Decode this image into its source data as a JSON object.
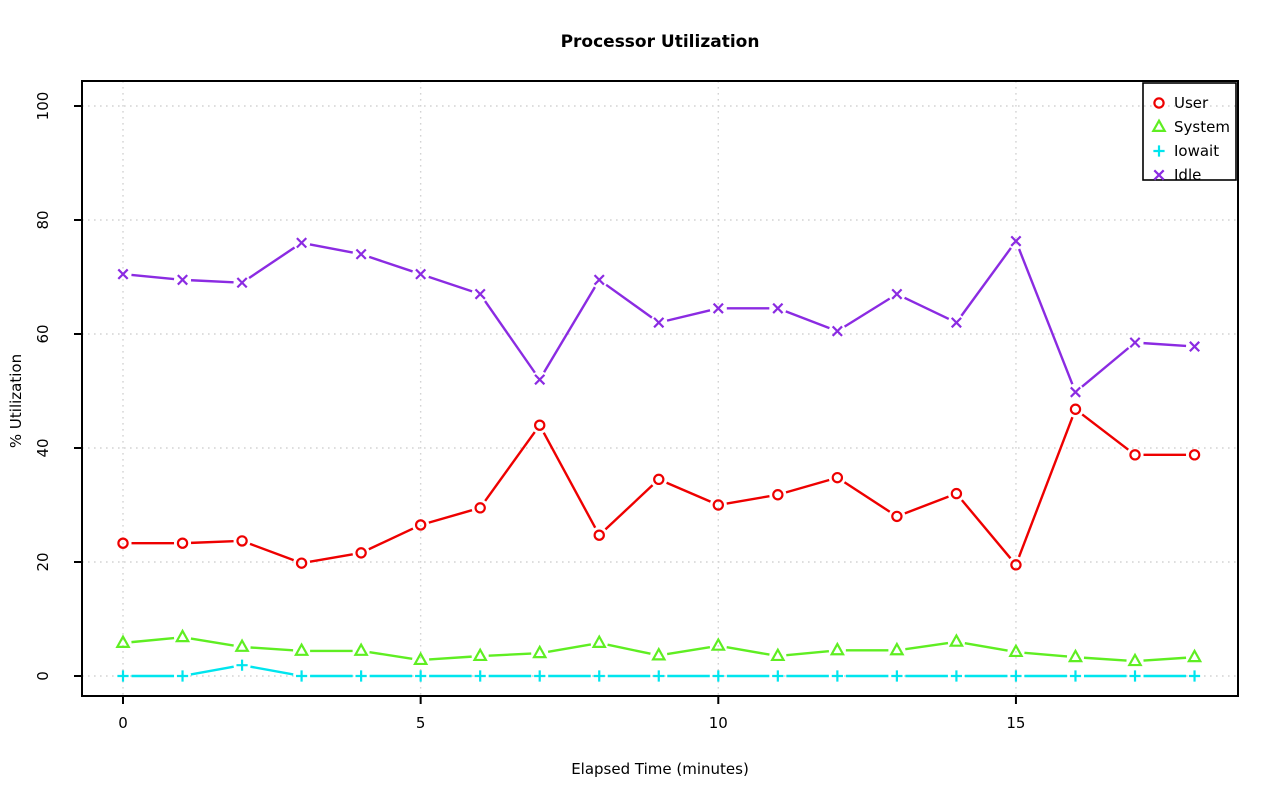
{
  "chart_data": {
    "type": "line",
    "title": "Processor Utilization",
    "xlabel": "Elapsed Time (minutes)",
    "ylabel": "% Utilization",
    "x_ticks": [
      0,
      5,
      10,
      15
    ],
    "y_ticks": [
      0,
      20,
      40,
      60,
      80,
      100
    ],
    "xlim": [
      -0.7,
      18.75
    ],
    "ylim": [
      -3,
      105
    ],
    "grid": true,
    "grid_color": "#d3d3d3",
    "axis_color": "#000000",
    "legend_position": "top-right",
    "x": [
      0,
      1,
      2,
      3,
      4,
      5,
      6,
      7,
      8,
      9,
      10,
      11,
      12,
      13,
      14,
      15,
      16,
      17,
      18
    ],
    "series": [
      {
        "name": "User",
        "color": "#ee0000",
        "marker": "circle",
        "values": [
          23.3,
          23.3,
          23.7,
          19.8,
          21.6,
          26.5,
          29.5,
          44.0,
          24.7,
          34.5,
          30.0,
          31.8,
          34.8,
          28.0,
          32.0,
          19.5,
          46.8,
          38.8,
          38.8
        ]
      },
      {
        "name": "System",
        "color": "#5fee22",
        "marker": "triangle",
        "values": [
          5.8,
          6.8,
          5.1,
          4.4,
          4.4,
          2.8,
          3.5,
          4.0,
          5.8,
          3.6,
          5.3,
          3.5,
          4.5,
          4.5,
          6.0,
          4.2,
          3.3,
          2.6,
          3.3
        ]
      },
      {
        "name": "Iowait",
        "color": "#00e5ee",
        "marker": "plus",
        "values": [
          0,
          0,
          1.9,
          0,
          0,
          0,
          0,
          0,
          0,
          0,
          0,
          0,
          0,
          0,
          0,
          0,
          0,
          0,
          0
        ]
      },
      {
        "name": "Idle",
        "color": "#8b2be2",
        "marker": "x",
        "values": [
          70.5,
          69.5,
          69.0,
          76.0,
          74.0,
          70.5,
          67.0,
          52.0,
          69.5,
          62.0,
          64.5,
          64.5,
          60.5,
          67.0,
          62.0,
          76.3,
          49.8,
          58.5,
          57.8
        ]
      }
    ]
  }
}
